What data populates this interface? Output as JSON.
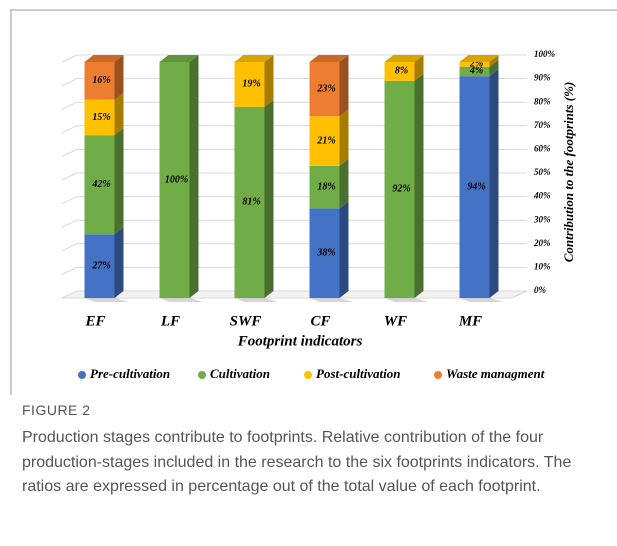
{
  "chart_data": {
    "type": "stacked_bar",
    "categories": [
      "EF",
      "LF",
      "SWF",
      "CF",
      "WF",
      "MF"
    ],
    "series": [
      {
        "name": "Pre-cultivation",
        "color": "#4472c4",
        "values": [
          27,
          null,
          null,
          38,
          null,
          94
        ],
        "value_labels": [
          "27%",
          null,
          null,
          "38%",
          null,
          "94%"
        ]
      },
      {
        "name": "Cultivation",
        "color": "#70ad47",
        "values": [
          42,
          100,
          81,
          18,
          92,
          4
        ],
        "value_labels": [
          "42%",
          "100%",
          "81%",
          "18%",
          "92%",
          "4%"
        ]
      },
      {
        "name": "Post-cultivation",
        "color": "#ffc000",
        "values": [
          15,
          null,
          19,
          21,
          8,
          2
        ],
        "value_labels": [
          "15%",
          null,
          "19%",
          "21%",
          "8%",
          "2%"
        ]
      },
      {
        "name": "Waste managment",
        "color": "#ed7d31",
        "values": [
          16,
          null,
          null,
          23,
          null,
          null
        ],
        "value_labels": [
          "16%",
          null,
          null,
          "23%",
          null,
          null
        ]
      }
    ],
    "xlabel": "Footprint indicators",
    "ylabel": "Contribution to the footprints (%)",
    "ylim": [
      0,
      100
    ],
    "yticks": [
      {
        "value": 0,
        "label": "0%"
      },
      {
        "value": 10,
        "label": "10%"
      },
      {
        "value": 20,
        "label": "20%"
      },
      {
        "value": 30,
        "label": "30%"
      },
      {
        "value": 40,
        "label": "40%"
      },
      {
        "value": 50,
        "label": "50%"
      },
      {
        "value": 60,
        "label": "60%"
      },
      {
        "value": 70,
        "label": "70%"
      },
      {
        "value": 80,
        "label": "80%"
      },
      {
        "value": 90,
        "label": "90%"
      },
      {
        "value": 100,
        "label": "100%"
      }
    ],
    "y_axis_side": "right",
    "legend": "bottom",
    "grid": true
  },
  "figure": {
    "label": "FIGURE 2",
    "caption": "Production stages contribute to footprints. Relative contribution of the four production-stages included in the research to the six footprints indicators. The ratios are expressed in percentage out of the total value of each footprint."
  }
}
